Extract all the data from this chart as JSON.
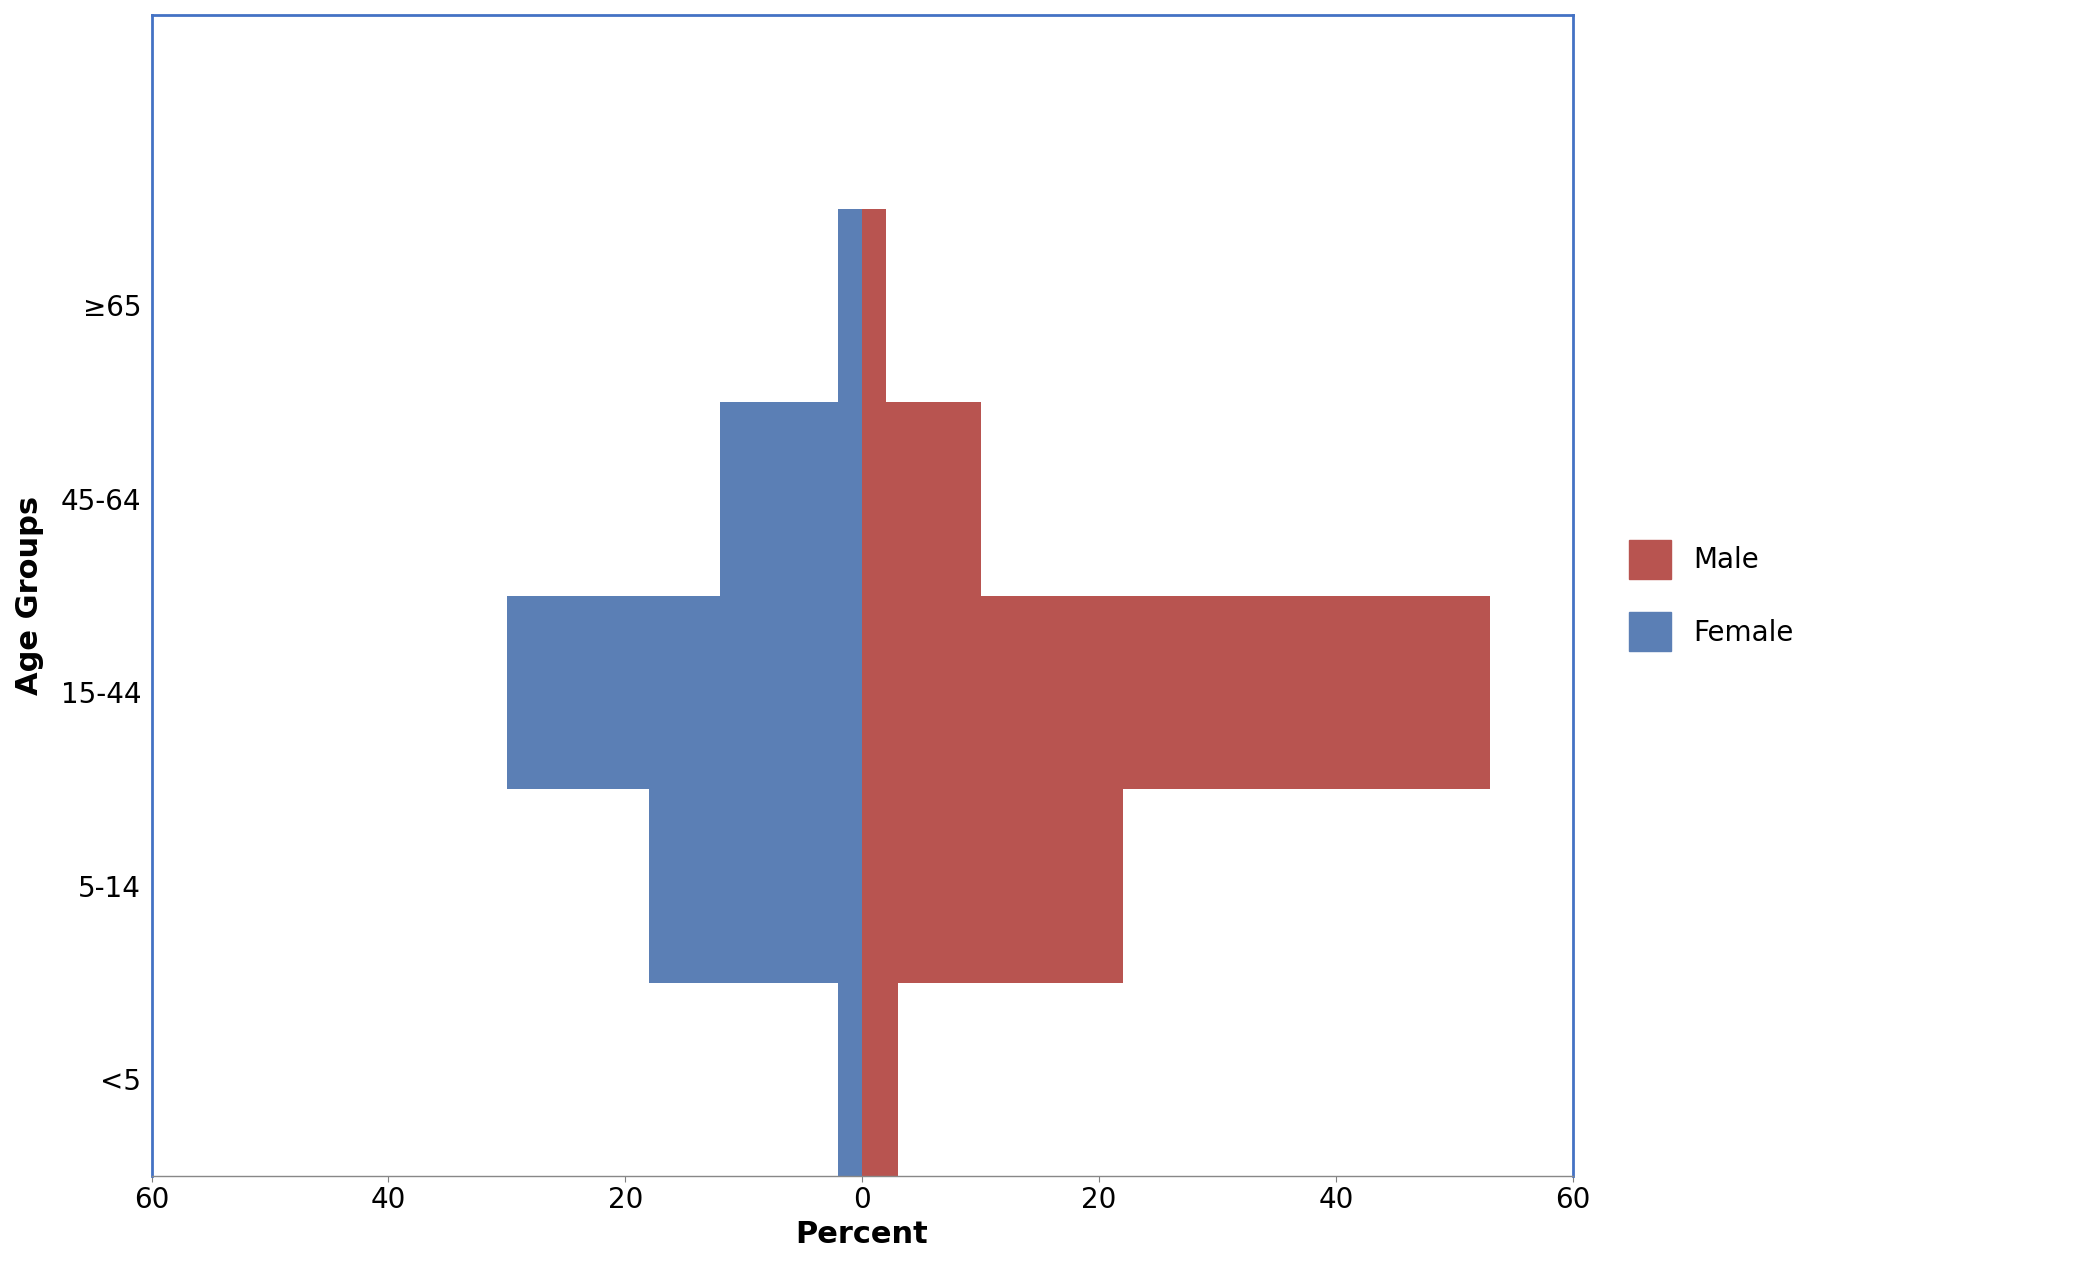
{
  "age_groups": [
    "<5",
    "5-14",
    "15-44",
    "45-64",
    "≥65"
  ],
  "female_values": [
    2,
    18,
    30,
    12,
    2
  ],
  "male_values": [
    3,
    22,
    53,
    10,
    2
  ],
  "female_color": "#5b7fb5",
  "male_color": "#b85450",
  "xlabel": "Percent",
  "ylabel": "Age Groups",
  "xlim": [
    -60,
    60
  ],
  "xticks": [
    -60,
    -40,
    -20,
    0,
    20,
    40,
    60
  ],
  "xticklabels": [
    "60",
    "40",
    "20",
    "0",
    "20",
    "40",
    "60"
  ],
  "title": "",
  "bar_height": 1.0,
  "legend_male": "Male",
  "legend_female": "Female",
  "figsize": [
    20.99,
    12.64
  ],
  "dpi": 100,
  "spine_color": "#4472c4",
  "bottom_spine_color": "#888888",
  "ylim_bottom": -0.5,
  "ylim_top": 5.5
}
